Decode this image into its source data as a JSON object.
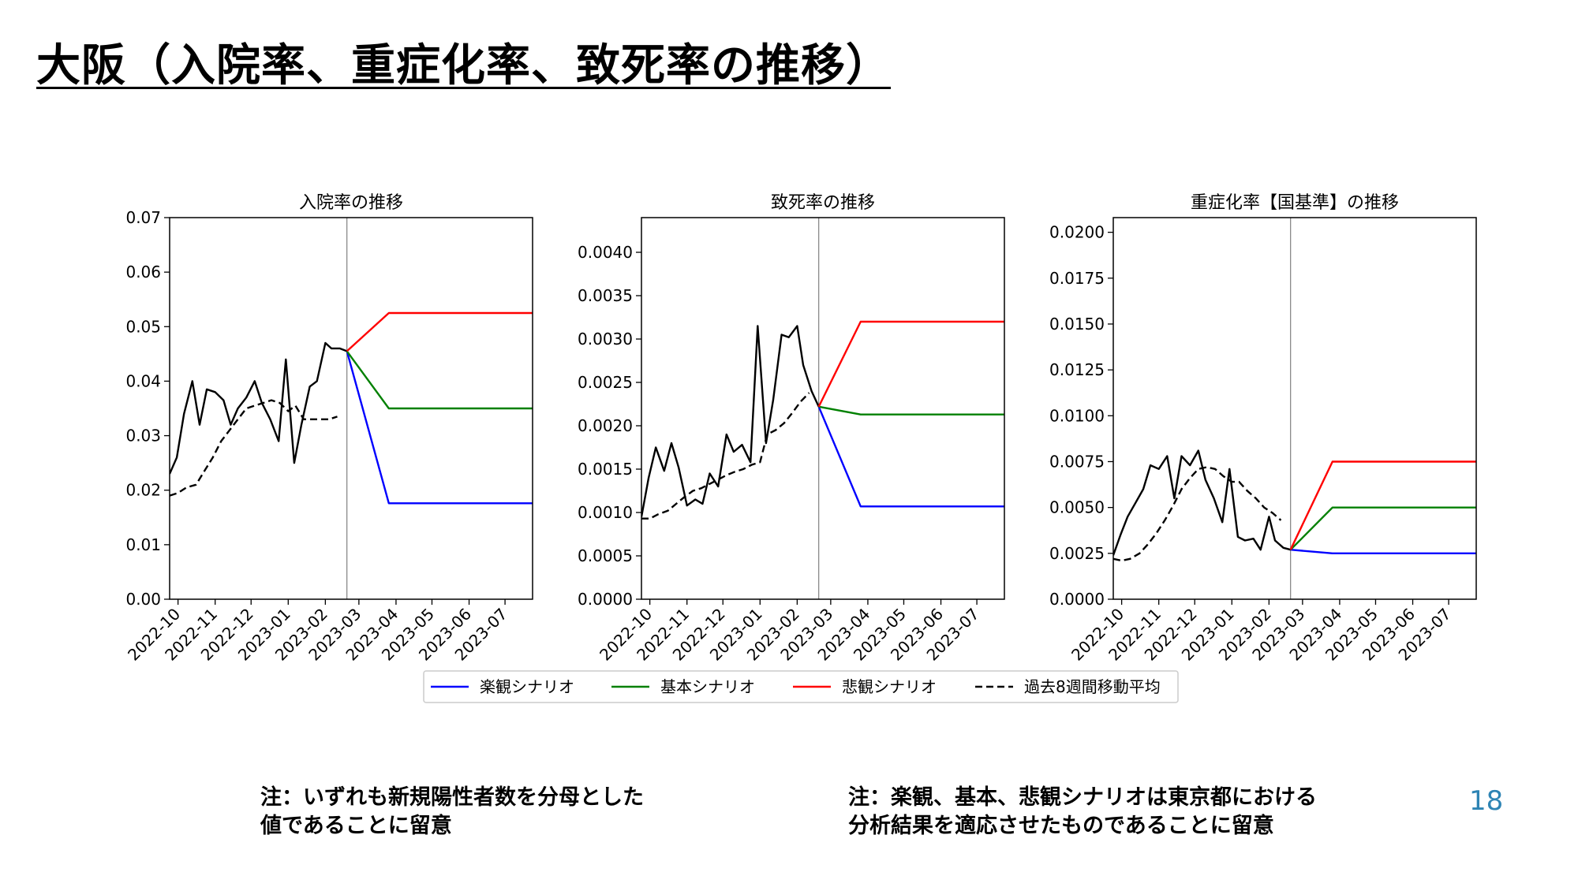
{
  "slide": {
    "title": "大阪（入院率、重症化率、致死率の推移）",
    "notes": [
      [
        "注：いずれも新規陽性者数を分母とした",
        "値であることに留意"
      ],
      [
        "注：楽観、基本、悲観シナリオは東京都における",
        "分析結果を適応させたものであることに留意"
      ]
    ],
    "page_number": "18"
  },
  "colors": {
    "optimistic": "#0000ff",
    "basic": "#008000",
    "pessimistic": "#ff0000",
    "moving_average": "#000000",
    "actual": "#000000",
    "divider": "#808080",
    "page_number": "#2e84b4"
  },
  "legend": {
    "items": [
      {
        "label": "楽観シナリオ",
        "style": "solid",
        "color": "#0000ff"
      },
      {
        "label": "基本シナリオ",
        "style": "solid",
        "color": "#008000"
      },
      {
        "label": "悲観シナリオ",
        "style": "solid",
        "color": "#ff0000"
      },
      {
        "label": "過去8週間移動平均",
        "style": "dashed",
        "color": "#000000"
      }
    ]
  },
  "chart_data": [
    {
      "type": "line",
      "title": "入院率の推移",
      "x_ticks": [
        "2022-10",
        "2022-11",
        "2022-12",
        "2023-01",
        "2023-02",
        "2023-03",
        "2023-04",
        "2023-05",
        "2023-06",
        "2023-07"
      ],
      "x_range": [
        "2022-09-24",
        "2023-07-24"
      ],
      "ylim": [
        0,
        0.07
      ],
      "y_ticks": [
        "0.00",
        "0.01",
        "0.02",
        "0.03",
        "0.04",
        "0.05",
        "0.06",
        "0.07"
      ],
      "divider_date": "2023-02-19",
      "series": [
        {
          "key": "actual",
          "style": "solid",
          "x": [
            "2022-09-24",
            "2022-09-30",
            "2022-10-06",
            "2022-10-13",
            "2022-10-19",
            "2022-10-25",
            "2022-11-01",
            "2022-11-08",
            "2022-11-14",
            "2022-11-20",
            "2022-11-27",
            "2022-12-04",
            "2022-12-10",
            "2022-12-17",
            "2022-12-24",
            "2022-12-30",
            "2023-01-06",
            "2023-01-12",
            "2023-01-19",
            "2023-01-25",
            "2023-02-01",
            "2023-02-06",
            "2023-02-13",
            "2023-02-19"
          ],
          "y": [
            0.023,
            0.026,
            0.034,
            0.04,
            0.032,
            0.0385,
            0.038,
            0.0365,
            0.032,
            0.035,
            0.037,
            0.04,
            0.036,
            0.033,
            0.029,
            0.044,
            0.025,
            0.032,
            0.039,
            0.04,
            0.047,
            0.046,
            0.046,
            0.0455
          ]
        },
        {
          "key": "moving_average",
          "style": "dashed",
          "x": [
            "2022-09-24",
            "2022-10-01",
            "2022-10-08",
            "2022-10-16",
            "2022-10-23",
            "2022-10-30",
            "2022-11-06",
            "2022-11-13",
            "2022-11-20",
            "2022-11-27",
            "2022-12-04",
            "2022-12-11",
            "2022-12-18",
            "2022-12-25",
            "2023-01-01",
            "2023-01-07",
            "2023-01-14",
            "2023-01-21",
            "2023-01-28",
            "2023-02-04",
            "2023-02-11"
          ],
          "y": [
            0.019,
            0.0195,
            0.0205,
            0.021,
            0.0235,
            0.026,
            0.029,
            0.031,
            0.033,
            0.035,
            0.0355,
            0.036,
            0.0365,
            0.036,
            0.0345,
            0.0355,
            0.033,
            0.033,
            0.033,
            0.033,
            0.0335
          ]
        },
        {
          "key": "optimistic",
          "style": "solid",
          "x": [
            "2023-02-19",
            "2023-03-26",
            "2023-07-24"
          ],
          "y": [
            0.0455,
            0.0176,
            0.0176
          ]
        },
        {
          "key": "basic",
          "style": "solid",
          "x": [
            "2023-02-19",
            "2023-03-26",
            "2023-07-24"
          ],
          "y": [
            0.0455,
            0.035,
            0.035
          ]
        },
        {
          "key": "pessimistic",
          "style": "solid",
          "x": [
            "2023-02-19",
            "2023-03-26",
            "2023-07-24"
          ],
          "y": [
            0.0455,
            0.0525,
            0.0525
          ]
        }
      ]
    },
    {
      "type": "line",
      "title": "致死率の推移",
      "x_ticks": [
        "2022-10",
        "2022-11",
        "2022-12",
        "2023-01",
        "2023-02",
        "2023-03",
        "2023-04",
        "2023-05",
        "2023-06",
        "2023-07"
      ],
      "x_range": [
        "2022-09-24",
        "2023-07-24"
      ],
      "ylim": [
        0,
        0.0044
      ],
      "y_ticks": [
        "0.0000",
        "0.0005",
        "0.0010",
        "0.0015",
        "0.0020",
        "0.0025",
        "0.0030",
        "0.0035",
        "0.0040"
      ],
      "divider_date": "2023-02-19",
      "series": [
        {
          "key": "actual",
          "style": "solid",
          "x": [
            "2022-09-24",
            "2022-09-30",
            "2022-10-06",
            "2022-10-13",
            "2022-10-19",
            "2022-10-25",
            "2022-11-01",
            "2022-11-08",
            "2022-11-14",
            "2022-11-20",
            "2022-11-27",
            "2022-12-04",
            "2022-12-10",
            "2022-12-17",
            "2022-12-24",
            "2022-12-30",
            "2023-01-06",
            "2023-01-12",
            "2023-01-19",
            "2023-01-25",
            "2023-02-01",
            "2023-02-06",
            "2023-02-13",
            "2023-02-19"
          ],
          "y": [
            0.00095,
            0.0014,
            0.00175,
            0.00148,
            0.0018,
            0.00152,
            0.00108,
            0.00115,
            0.0011,
            0.00145,
            0.0013,
            0.0019,
            0.0017,
            0.00178,
            0.00158,
            0.00315,
            0.0018,
            0.0023,
            0.00305,
            0.00302,
            0.00315,
            0.0027,
            0.0024,
            0.00222
          ]
        },
        {
          "key": "moving_average",
          "style": "dashed",
          "x": [
            "2022-09-24",
            "2022-10-01",
            "2022-10-08",
            "2022-10-16",
            "2022-10-23",
            "2022-10-30",
            "2022-11-06",
            "2022-11-13",
            "2022-11-20",
            "2022-11-27",
            "2022-12-04",
            "2022-12-11",
            "2022-12-18",
            "2022-12-25",
            "2023-01-01",
            "2023-01-07",
            "2023-01-14",
            "2023-01-21",
            "2023-01-28",
            "2023-02-04",
            "2023-02-11"
          ],
          "y": [
            0.00093,
            0.00093,
            0.00098,
            0.00102,
            0.0011,
            0.00118,
            0.00125,
            0.00128,
            0.00133,
            0.00138,
            0.00143,
            0.00147,
            0.0015,
            0.00155,
            0.00158,
            0.0019,
            0.00195,
            0.00203,
            0.00215,
            0.00228,
            0.00238
          ]
        },
        {
          "key": "optimistic",
          "style": "solid",
          "x": [
            "2023-02-19",
            "2023-03-26",
            "2023-07-24"
          ],
          "y": [
            0.00222,
            0.00107,
            0.00107
          ]
        },
        {
          "key": "basic",
          "style": "solid",
          "x": [
            "2023-02-19",
            "2023-03-26",
            "2023-07-24"
          ],
          "y": [
            0.00222,
            0.00213,
            0.00213
          ]
        },
        {
          "key": "pessimistic",
          "style": "solid",
          "x": [
            "2023-02-19",
            "2023-03-26",
            "2023-07-24"
          ],
          "y": [
            0.00222,
            0.0032,
            0.0032
          ]
        }
      ]
    },
    {
      "type": "line",
      "title": "重症化率【国基準】の推移",
      "x_ticks": [
        "2022-10",
        "2022-11",
        "2022-12",
        "2023-01",
        "2023-02",
        "2023-03",
        "2023-04",
        "2023-05",
        "2023-06",
        "2023-07"
      ],
      "x_range": [
        "2022-09-24",
        "2023-07-24"
      ],
      "ylim": [
        0,
        0.0208
      ],
      "y_ticks": [
        "0.0000",
        "0.0025",
        "0.0050",
        "0.0075",
        "0.0100",
        "0.0125",
        "0.0150",
        "0.0175",
        "0.0200"
      ],
      "divider_date": "2023-02-19",
      "series": [
        {
          "key": "actual",
          "style": "solid",
          "x": [
            "2022-09-24",
            "2022-09-30",
            "2022-10-06",
            "2022-10-13",
            "2022-10-19",
            "2022-10-25",
            "2022-11-01",
            "2022-11-08",
            "2022-11-14",
            "2022-11-20",
            "2022-11-27",
            "2022-12-04",
            "2022-12-10",
            "2022-12-17",
            "2022-12-24",
            "2022-12-30",
            "2023-01-06",
            "2023-01-12",
            "2023-01-19",
            "2023-01-25",
            "2023-02-01",
            "2023-02-06",
            "2023-02-13",
            "2023-02-19"
          ],
          "y": [
            0.0024,
            0.0035,
            0.0045,
            0.0053,
            0.006,
            0.0073,
            0.0071,
            0.0078,
            0.0055,
            0.0078,
            0.0073,
            0.0081,
            0.0065,
            0.0055,
            0.0042,
            0.0071,
            0.0034,
            0.0032,
            0.0033,
            0.0027,
            0.0045,
            0.0032,
            0.0028,
            0.0027
          ]
        },
        {
          "key": "moving_average",
          "style": "dashed",
          "x": [
            "2022-09-24",
            "2022-10-01",
            "2022-10-08",
            "2022-10-16",
            "2022-10-23",
            "2022-10-30",
            "2022-11-06",
            "2022-11-13",
            "2022-11-20",
            "2022-11-27",
            "2022-12-04",
            "2022-12-11",
            "2022-12-18",
            "2022-12-25",
            "2023-01-01",
            "2023-01-07",
            "2023-01-14",
            "2023-01-21",
            "2023-01-28",
            "2023-02-04",
            "2023-02-11"
          ],
          "y": [
            0.0022,
            0.0021,
            0.0022,
            0.0025,
            0.003,
            0.0036,
            0.0043,
            0.0051,
            0.006,
            0.0066,
            0.0071,
            0.0072,
            0.0071,
            0.0067,
            0.0064,
            0.0064,
            0.0059,
            0.0055,
            0.005,
            0.0047,
            0.0043
          ]
        },
        {
          "key": "optimistic",
          "style": "solid",
          "x": [
            "2023-02-19",
            "2023-03-26",
            "2023-07-24"
          ],
          "y": [
            0.0027,
            0.0025,
            0.0025
          ]
        },
        {
          "key": "basic",
          "style": "solid",
          "x": [
            "2023-02-19",
            "2023-03-26",
            "2023-07-24"
          ],
          "y": [
            0.0027,
            0.005,
            0.005
          ]
        },
        {
          "key": "pessimistic",
          "style": "solid",
          "x": [
            "2023-02-19",
            "2023-03-26",
            "2023-07-24"
          ],
          "y": [
            0.0027,
            0.0075,
            0.0075
          ]
        }
      ]
    }
  ]
}
